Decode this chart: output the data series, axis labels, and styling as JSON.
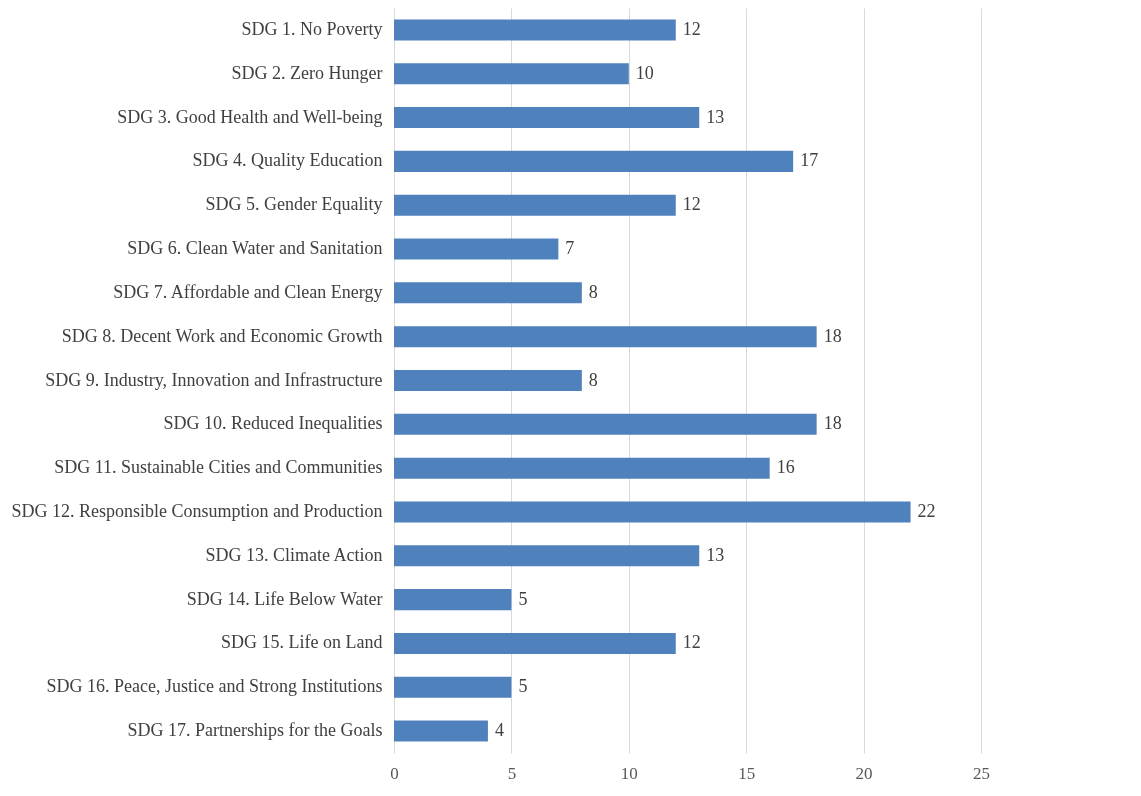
{
  "chart_data": {
    "type": "bar",
    "orientation": "horizontal",
    "categories": [
      "SDG 1. No Poverty",
      "SDG 2. Zero Hunger",
      "SDG 3. Good Health and Well-being",
      "SDG 4. Quality Education",
      "SDG 5. Gender Equality",
      "SDG 6. Clean Water and Sanitation",
      "SDG 7. Affordable and Clean Energy",
      "SDG 8. Decent Work and Economic Growth",
      "SDG 9. Industry, Innovation and Infrastructure",
      "SDG 10. Reduced Inequalities",
      "SDG 11. Sustainable Cities and Communities",
      "SDG 12. Responsible Consumption and Production",
      "SDG 13. Climate Action",
      "SDG 14. Life Below Water",
      "SDG 15. Life on Land",
      "SDG 16. Peace, Justice and Strong Institutions",
      "SDG 17. Partnerships for the Goals"
    ],
    "values": [
      12,
      10,
      13,
      17,
      12,
      7,
      8,
      18,
      8,
      18,
      16,
      22,
      13,
      5,
      12,
      5,
      4
    ],
    "color": "#4f81bd",
    "xlim": [
      0,
      25
    ],
    "xticks": [
      0,
      5,
      10,
      15,
      20,
      25
    ],
    "grid": "x",
    "data_labels": true
  }
}
